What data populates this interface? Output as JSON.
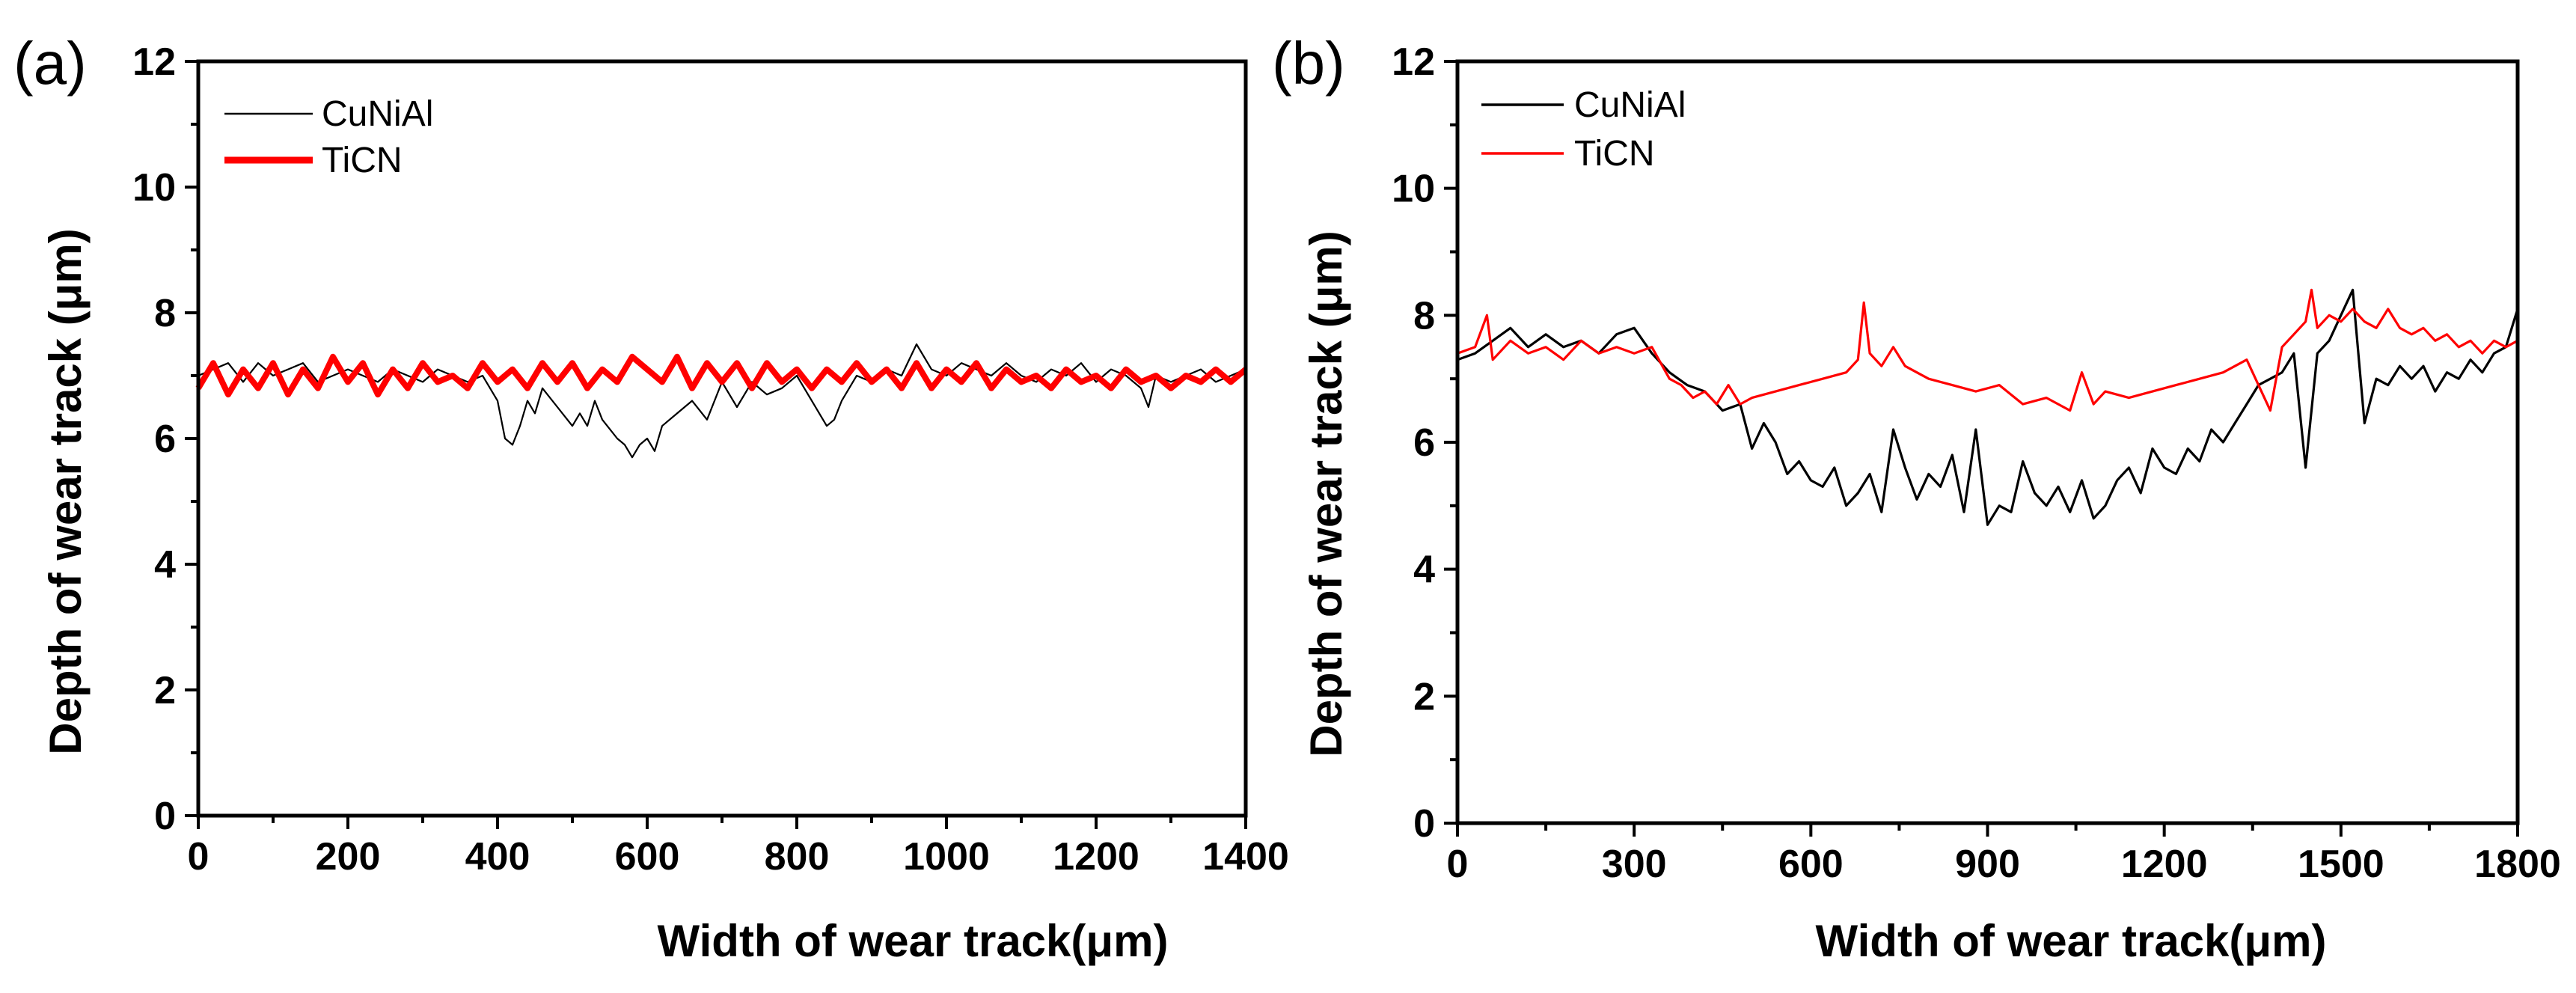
{
  "chart_data": [
    {
      "type": "line",
      "panel_label": "(a)",
      "xlabel": "Width of wear track(μm)",
      "ylabel": "Depth of wear track (μm)",
      "xlim": [
        0,
        1400
      ],
      "ylim": [
        0,
        12
      ],
      "xticks": [
        0,
        200,
        400,
        600,
        800,
        1000,
        1200,
        1400
      ],
      "yticks": [
        0,
        2,
        4,
        6,
        8,
        10,
        12
      ],
      "grid": false,
      "legend_position": "top-left",
      "series": [
        {
          "name": "CuNiAl",
          "color": "#000000",
          "line_style": "thin",
          "x": [
            0,
            20,
            40,
            60,
            80,
            100,
            120,
            140,
            160,
            180,
            200,
            220,
            240,
            260,
            280,
            300,
            320,
            340,
            360,
            380,
            400,
            410,
            420,
            430,
            440,
            450,
            460,
            480,
            500,
            510,
            520,
            530,
            540,
            560,
            570,
            580,
            590,
            600,
            610,
            620,
            640,
            660,
            680,
            700,
            720,
            740,
            760,
            780,
            800,
            820,
            840,
            850,
            860,
            880,
            900,
            920,
            940,
            960,
            980,
            1000,
            1020,
            1040,
            1060,
            1080,
            1100,
            1120,
            1140,
            1160,
            1180,
            1200,
            1220,
            1240,
            1260,
            1270,
            1280,
            1300,
            1320,
            1340,
            1360,
            1380,
            1400
          ],
          "y": [
            7.0,
            7.1,
            7.2,
            6.9,
            7.2,
            7.0,
            7.1,
            7.2,
            6.9,
            7.0,
            7.1,
            7.0,
            6.9,
            7.1,
            7.0,
            6.9,
            7.1,
            7.0,
            6.9,
            7.0,
            6.6,
            6.0,
            5.9,
            6.2,
            6.6,
            6.4,
            6.8,
            6.5,
            6.2,
            6.4,
            6.2,
            6.6,
            6.3,
            6.0,
            5.9,
            5.7,
            5.9,
            6.0,
            5.8,
            6.2,
            6.4,
            6.6,
            6.3,
            6.9,
            6.5,
            6.9,
            6.7,
            6.8,
            7.0,
            6.6,
            6.2,
            6.3,
            6.6,
            7.0,
            6.9,
            7.1,
            7.0,
            7.5,
            7.1,
            7.0,
            7.2,
            7.1,
            7.0,
            7.2,
            7.0,
            6.9,
            7.1,
            7.0,
            7.2,
            6.9,
            7.1,
            7.0,
            6.8,
            6.5,
            7.0,
            6.9,
            7.0,
            7.1,
            6.9,
            7.0,
            7.1
          ]
        },
        {
          "name": "TiCN",
          "color": "#ff0000",
          "line_style": "thick",
          "x": [
            0,
            20,
            40,
            60,
            80,
            100,
            120,
            140,
            160,
            180,
            200,
            220,
            240,
            260,
            280,
            300,
            320,
            340,
            360,
            380,
            400,
            420,
            440,
            460,
            480,
            500,
            520,
            540,
            560,
            580,
            600,
            620,
            640,
            660,
            680,
            700,
            720,
            740,
            760,
            780,
            800,
            820,
            840,
            860,
            880,
            900,
            920,
            940,
            960,
            980,
            1000,
            1020,
            1040,
            1060,
            1080,
            1100,
            1120,
            1140,
            1160,
            1180,
            1200,
            1220,
            1240,
            1260,
            1280,
            1300,
            1320,
            1340,
            1360,
            1380,
            1400
          ],
          "y": [
            6.8,
            7.2,
            6.7,
            7.1,
            6.8,
            7.2,
            6.7,
            7.1,
            6.8,
            7.3,
            6.9,
            7.2,
            6.7,
            7.1,
            6.8,
            7.2,
            6.9,
            7.0,
            6.8,
            7.2,
            6.9,
            7.1,
            6.8,
            7.2,
            6.9,
            7.2,
            6.8,
            7.1,
            6.9,
            7.3,
            7.1,
            6.9,
            7.3,
            6.8,
            7.2,
            6.9,
            7.2,
            6.8,
            7.2,
            6.9,
            7.1,
            6.8,
            7.1,
            6.9,
            7.2,
            6.9,
            7.1,
            6.8,
            7.2,
            6.8,
            7.1,
            6.9,
            7.2,
            6.8,
            7.1,
            6.9,
            7.0,
            6.8,
            7.1,
            6.9,
            7.0,
            6.8,
            7.1,
            6.9,
            7.0,
            6.8,
            7.0,
            6.9,
            7.1,
            6.9,
            7.1
          ]
        }
      ]
    },
    {
      "type": "line",
      "panel_label": "(b)",
      "xlabel": "Width of wear track(μm)",
      "ylabel": "Depth of wear track (μm)",
      "xlim": [
        0,
        1800
      ],
      "ylim": [
        0,
        12
      ],
      "xticks": [
        0,
        300,
        600,
        900,
        1200,
        1500,
        1800
      ],
      "yticks": [
        0,
        2,
        4,
        6,
        8,
        10,
        12
      ],
      "grid": false,
      "legend_position": "top-left",
      "series": [
        {
          "name": "CuNiAl",
          "color": "#000000",
          "line_style": "normal",
          "x": [
            0,
            30,
            60,
            90,
            120,
            150,
            180,
            210,
            240,
            270,
            300,
            330,
            360,
            390,
            420,
            450,
            480,
            500,
            520,
            540,
            560,
            580,
            600,
            620,
            640,
            660,
            680,
            700,
            720,
            740,
            760,
            780,
            800,
            820,
            840,
            860,
            880,
            900,
            920,
            940,
            960,
            980,
            1000,
            1020,
            1040,
            1060,
            1080,
            1100,
            1120,
            1140,
            1160,
            1180,
            1200,
            1220,
            1240,
            1260,
            1280,
            1300,
            1320,
            1340,
            1360,
            1380,
            1400,
            1420,
            1440,
            1460,
            1480,
            1500,
            1520,
            1540,
            1560,
            1580,
            1600,
            1620,
            1640,
            1660,
            1680,
            1700,
            1720,
            1740,
            1760,
            1780,
            1800
          ],
          "y": [
            7.3,
            7.4,
            7.6,
            7.8,
            7.5,
            7.7,
            7.5,
            7.6,
            7.4,
            7.7,
            7.8,
            7.4,
            7.1,
            6.9,
            6.8,
            6.5,
            6.6,
            5.9,
            6.3,
            6.0,
            5.5,
            5.7,
            5.4,
            5.3,
            5.6,
            5.0,
            5.2,
            5.5,
            4.9,
            6.2,
            5.6,
            5.1,
            5.5,
            5.3,
            5.8,
            4.9,
            6.2,
            4.7,
            5.0,
            4.9,
            5.7,
            5.2,
            5.0,
            5.3,
            4.9,
            5.4,
            4.8,
            5.0,
            5.4,
            5.6,
            5.2,
            5.9,
            5.6,
            5.5,
            5.9,
            5.7,
            6.2,
            6.0,
            6.3,
            6.6,
            6.9,
            7.0,
            7.1,
            7.4,
            5.6,
            7.4,
            7.6,
            8.0,
            8.4,
            6.3,
            7.0,
            6.9,
            7.2,
            7.0,
            7.2,
            6.8,
            7.1,
            7.0,
            7.3,
            7.1,
            7.4,
            7.5,
            8.1
          ]
        },
        {
          "name": "TiCN",
          "color": "#ff0000",
          "line_style": "normal",
          "x": [
            0,
            30,
            50,
            60,
            90,
            120,
            150,
            180,
            210,
            240,
            270,
            300,
            330,
            360,
            380,
            400,
            420,
            440,
            460,
            480,
            500,
            540,
            580,
            620,
            660,
            680,
            690,
            700,
            720,
            740,
            760,
            780,
            800,
            840,
            880,
            920,
            960,
            1000,
            1040,
            1060,
            1080,
            1100,
            1140,
            1180,
            1220,
            1260,
            1300,
            1340,
            1380,
            1400,
            1420,
            1440,
            1450,
            1460,
            1480,
            1500,
            1520,
            1540,
            1560,
            1580,
            1600,
            1620,
            1640,
            1660,
            1680,
            1700,
            1720,
            1740,
            1760,
            1780,
            1800
          ],
          "y": [
            7.4,
            7.5,
            8.0,
            7.3,
            7.6,
            7.4,
            7.5,
            7.3,
            7.6,
            7.4,
            7.5,
            7.4,
            7.5,
            7.0,
            6.9,
            6.7,
            6.8,
            6.6,
            6.9,
            6.6,
            6.7,
            6.8,
            6.9,
            7.0,
            7.1,
            7.3,
            8.2,
            7.4,
            7.2,
            7.5,
            7.2,
            7.1,
            7.0,
            6.9,
            6.8,
            6.9,
            6.6,
            6.7,
            6.5,
            7.1,
            6.6,
            6.8,
            6.7,
            6.8,
            6.9,
            7.0,
            7.1,
            7.3,
            6.5,
            7.5,
            7.7,
            7.9,
            8.4,
            7.8,
            8.0,
            7.9,
            8.1,
            7.9,
            7.8,
            8.1,
            7.8,
            7.7,
            7.8,
            7.6,
            7.7,
            7.5,
            7.6,
            7.4,
            7.6,
            7.5,
            7.6
          ]
        }
      ]
    }
  ]
}
